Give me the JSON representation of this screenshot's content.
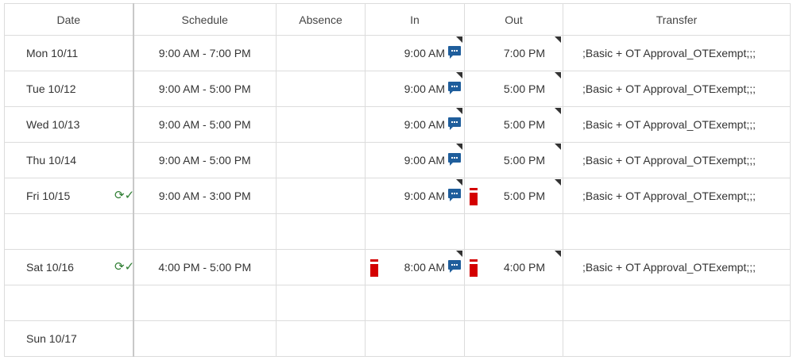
{
  "columns": [
    "Date",
    "Schedule",
    "Absence",
    "In",
    "Out",
    "Transfer"
  ],
  "rows": [
    {
      "date": "Mon 10/11",
      "schedule": "9:00 AM - 7:00 PM",
      "absence": "",
      "in": "9:00 AM",
      "out": "7:00 PM",
      "transfer": ";Basic + OT Approval_OTExempt;;;",
      "in_note": true,
      "in_flag": false,
      "out_flag": false,
      "approved": false
    },
    {
      "date": "Tue 10/12",
      "schedule": "9:00 AM - 5:00 PM",
      "absence": "",
      "in": "9:00 AM",
      "out": "5:00 PM",
      "transfer": ";Basic + OT Approval_OTExempt;;;",
      "in_note": true,
      "in_flag": false,
      "out_flag": false,
      "approved": false
    },
    {
      "date": "Wed 10/13",
      "schedule": "9:00 AM - 5:00 PM",
      "absence": "",
      "in": "9:00 AM",
      "out": "5:00 PM",
      "transfer": ";Basic + OT Approval_OTExempt;;;",
      "in_note": true,
      "in_flag": false,
      "out_flag": false,
      "approved": false
    },
    {
      "date": "Thu 10/14",
      "schedule": "9:00 AM - 5:00 PM",
      "absence": "",
      "in": "9:00 AM",
      "out": "5:00 PM",
      "transfer": ";Basic + OT Approval_OTExempt;;;",
      "in_note": true,
      "in_flag": false,
      "out_flag": false,
      "approved": false
    },
    {
      "date": "Fri 10/15",
      "schedule": "9:00 AM - 3:00 PM",
      "absence": "",
      "in": "9:00 AM",
      "out": "5:00 PM",
      "transfer": ";Basic + OT Approval_OTExempt;;;",
      "in_note": true,
      "in_flag": false,
      "out_flag": true,
      "approved": true
    },
    {
      "date": "",
      "schedule": "",
      "absence": "",
      "in": "",
      "out": "",
      "transfer": "",
      "blank": true
    },
    {
      "date": "Sat 10/16",
      "schedule": "4:00 PM - 5:00 PM",
      "absence": "",
      "in": "8:00 AM",
      "out": "4:00 PM",
      "transfer": ";Basic + OT Approval_OTExempt;;;",
      "in_note": true,
      "in_flag": true,
      "out_flag": true,
      "approved": true
    },
    {
      "date": "",
      "schedule": "",
      "absence": "",
      "in": "",
      "out": "",
      "transfer": "",
      "blank": true
    },
    {
      "date": "Sun 10/17",
      "schedule": "",
      "absence": "",
      "in": "",
      "out": "",
      "transfer": "",
      "empty_day": true
    }
  ],
  "icons": {
    "approval": "timer-check-icon",
    "note": "comment-icon",
    "flag": "exception-flag-icon",
    "corner": "edit-corner-marker"
  },
  "colors": {
    "note": "#1f5e9c",
    "flag": "#d40000",
    "approval": "#2e7d32"
  }
}
